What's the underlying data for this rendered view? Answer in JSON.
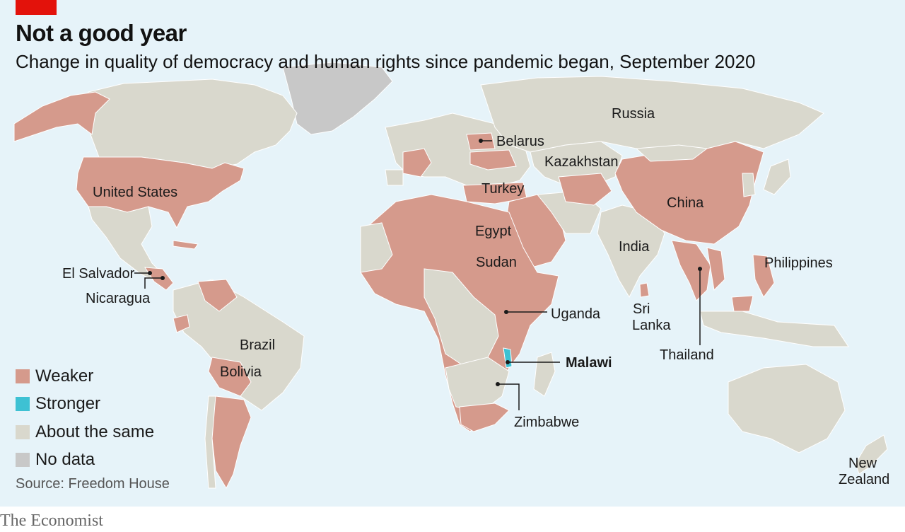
{
  "header": {
    "title": "Not a good year",
    "subtitle": "Change in quality of democracy and human rights since pandemic began, September 2020"
  },
  "colors": {
    "weaker": "#d59a8c",
    "stronger": "#3ec1d3",
    "same": "#d9d8cd",
    "nodata": "#c8c8c8",
    "ocean": "#e6f3f9",
    "accent": "#e3120b"
  },
  "legend": [
    {
      "label": "Weaker",
      "color": "#d59a8c"
    },
    {
      "label": "Stronger",
      "color": "#3ec1d3"
    },
    {
      "label": "About the same",
      "color": "#d9d8cd"
    },
    {
      "label": "No data",
      "color": "#c8c8c8"
    }
  ],
  "labels": {
    "russia": "Russia",
    "belarus": "Belarus",
    "kazakhstan": "Kazakhstan",
    "turkey": "Turkey",
    "china": "China",
    "united_states": "United States",
    "egypt": "Egypt",
    "sudan": "Sudan",
    "india": "India",
    "philippines": "Philippines",
    "el_salvador": "El Salvador",
    "nicaragua": "Nicaragua",
    "uganda": "Uganda",
    "sri": "Sri",
    "lanka": "Lanka",
    "thailand": "Thailand",
    "brazil": "Brazil",
    "bolivia": "Bolivia",
    "malawi": "Malawi",
    "zimbabwe": "Zimbabwe",
    "new": "New",
    "zealand": "Zealand"
  },
  "source": "Source: Freedom House",
  "footer": "The Economist"
}
